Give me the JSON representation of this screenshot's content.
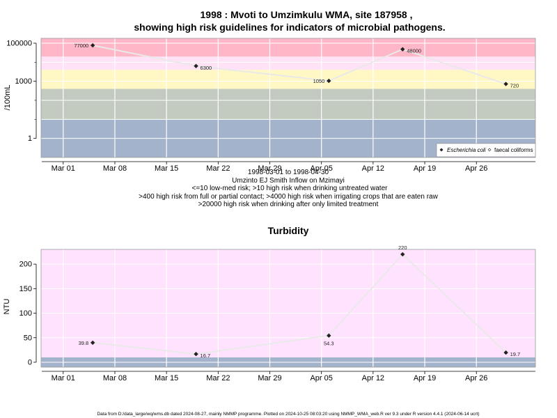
{
  "title_line1": "1998 : Mvoti to Umzimkulu WMA, site 187958 ,",
  "title_line2": "showing high risk guidelines for indicators of microbial pathogens.",
  "info_lines": [
    "1998-03-01 to 1998-04-30",
    "Umzinto EJ Smith Inflow on Mzimayi",
    "<=10 low-med risk; >10 high risk when drinking untreated water",
    ">400 high risk from full or partial contact; >4000 high risk when irrigating crops that are eaten raw",
    ">20000 high risk when drinking after only limited treatment"
  ],
  "footer": "Data from D:/data_large/wq/wms.db dated 2024-08-27, mainly NMMP programme. Plotted on 2024-10-25 08:03:20 using NMMP_WMA_web.R ver 9.3 under R version 4.4.1 (2024-06-14 ucrt)",
  "legend": {
    "ecoli": "Escherichia coli",
    "fc": "faecal coliforms"
  },
  "chart_data": [
    {
      "type": "line",
      "title": "",
      "ylabel": "/100mL",
      "yscale": "log10",
      "ylim": [
        0.1,
        180000
      ],
      "xlim": [
        "1998-02-26",
        "1998-05-04"
      ],
      "x_tick_labels": [
        "Mar 01",
        "Mar 08",
        "Mar 15",
        "Mar 22",
        "Mar 29",
        "Apr 05",
        "Apr 12",
        "Apr 19",
        "Apr 26"
      ],
      "x_tick_dates": [
        "1998-03-01",
        "1998-03-08",
        "1998-03-15",
        "1998-03-22",
        "1998-03-29",
        "1998-04-05",
        "1998-04-12",
        "1998-04-19",
        "1998-04-26"
      ],
      "y_tick_labels": [
        "1",
        "1000",
        "100000"
      ],
      "y_tick_values": [
        1,
        1000,
        100000
      ],
      "y_minor_ticks": [
        10,
        100,
        10000
      ],
      "risk_bands": [
        {
          "from": 0.1,
          "to": 10,
          "color": "#a3b3cc"
        },
        {
          "from": 10,
          "to": 400,
          "color": "#c3cbc0"
        },
        {
          "from": 400,
          "to": 4000,
          "color": "#fff7c4"
        },
        {
          "from": 4000,
          "to": 20000,
          "color": "#ffe2f5"
        },
        {
          "from": 20000,
          "to": 180000,
          "color": "#ffb7c7"
        }
      ],
      "grid": true,
      "legend_position": "bottom-right",
      "series": [
        {
          "name": "Escherichia coli",
          "color": "#222222",
          "line_color": "#e9e9e9",
          "x": [
            "1998-03-05",
            "1998-03-19",
            "1998-04-06",
            "1998-04-16",
            "1998-04-30"
          ],
          "y": [
            77000,
            6300,
            1050,
            48000,
            720
          ],
          "labels": [
            "77000",
            "6300",
            "1050",
            "48000",
            "720"
          ],
          "label_side": [
            "left",
            "right",
            "left",
            "right",
            "right"
          ]
        }
      ]
    },
    {
      "type": "line",
      "title": "Turbidity",
      "ylabel": "NTU",
      "ylim": [
        -10,
        230
      ],
      "xlim": [
        "1998-02-26",
        "1998-05-04"
      ],
      "x_tick_labels": [
        "Mar 01",
        "Mar 08",
        "Mar 15",
        "Mar 22",
        "Mar 29",
        "Apr 05",
        "Apr 12",
        "Apr 19",
        "Apr 26"
      ],
      "x_tick_dates": [
        "1998-03-01",
        "1998-03-08",
        "1998-03-15",
        "1998-03-22",
        "1998-03-29",
        "1998-04-05",
        "1998-04-12",
        "1998-04-19",
        "1998-04-26"
      ],
      "y_tick_labels": [
        "0",
        "50",
        "100",
        "150",
        "200"
      ],
      "y_tick_values": [
        0,
        50,
        100,
        150,
        200
      ],
      "risk_bands": [
        {
          "from": -10,
          "to": 10,
          "color": "#a3b3cc"
        },
        {
          "from": 10,
          "to": 230,
          "color": "#ffe2fd"
        }
      ],
      "grid": true,
      "series": [
        {
          "name": "",
          "color": "#222222",
          "line_color": "#e9e9e9",
          "x": [
            "1998-03-05",
            "1998-03-19",
            "1998-04-06",
            "1998-04-16",
            "1998-04-30"
          ],
          "y": [
            39.8,
            16.7,
            54.3,
            220,
            19.7
          ],
          "labels": [
            "39.8",
            "16.7",
            "54.3",
            "220",
            "19.7"
          ],
          "label_side": [
            "left",
            "right",
            "below",
            "above",
            "right"
          ]
        }
      ]
    }
  ]
}
